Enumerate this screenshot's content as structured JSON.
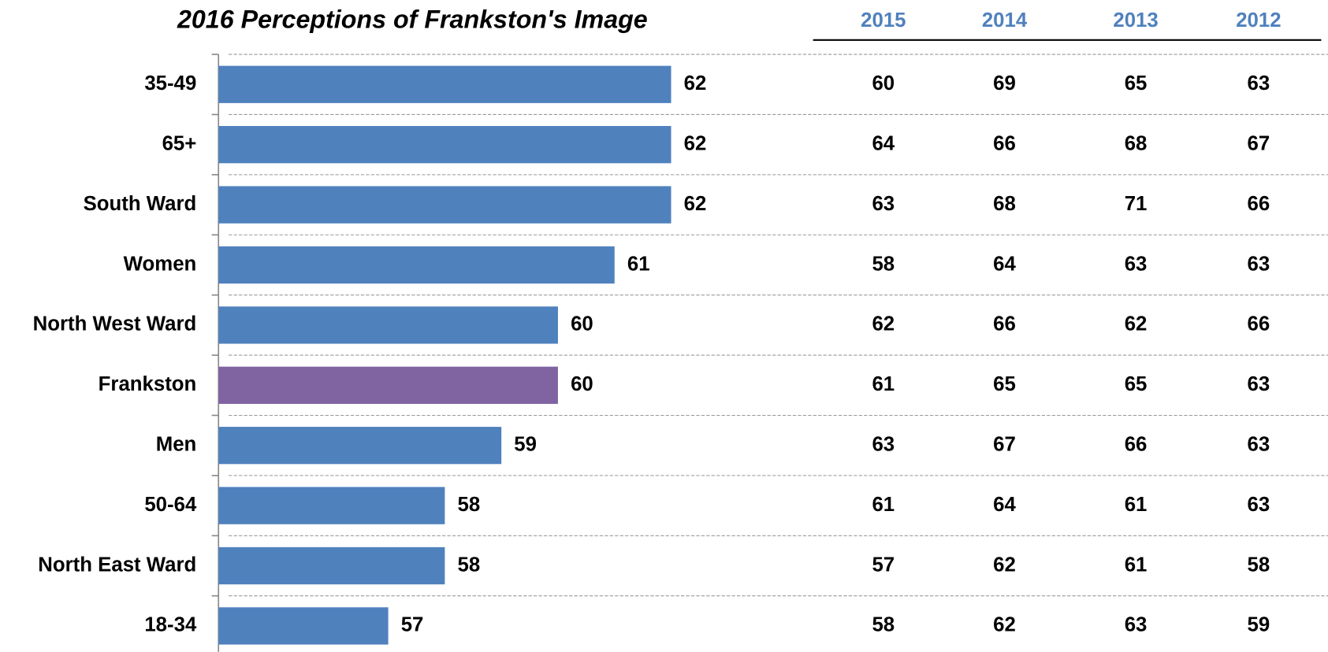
{
  "chart_data": {
    "type": "bar",
    "orientation": "horizontal",
    "title": "2016 Perceptions of Frankston's Image",
    "categories": [
      "35-49",
      "65+",
      "South Ward",
      "Women",
      "North West Ward",
      "Frankston",
      "Men",
      "50-64",
      "North East Ward",
      "18-34"
    ],
    "values": [
      62,
      62,
      62,
      61,
      60,
      60,
      59,
      58,
      58,
      57
    ],
    "colors": [
      "#4f81bd",
      "#4f81bd",
      "#4f81bd",
      "#4f81bd",
      "#4f81bd",
      "#8064a2",
      "#4f81bd",
      "#4f81bd",
      "#4f81bd",
      "#4f81bd"
    ],
    "xlim": [
      54,
      64
    ],
    "table": {
      "columns": [
        "2015",
        "2014",
        "2013",
        "2012"
      ],
      "rows": [
        [
          60,
          69,
          65,
          63
        ],
        [
          64,
          66,
          68,
          67
        ],
        [
          63,
          68,
          71,
          66
        ],
        [
          58,
          64,
          63,
          63
        ],
        [
          62,
          66,
          62,
          66
        ],
        [
          61,
          65,
          65,
          63
        ],
        [
          63,
          67,
          66,
          63
        ],
        [
          61,
          64,
          61,
          63
        ],
        [
          57,
          62,
          61,
          58
        ],
        [
          58,
          62,
          63,
          59
        ]
      ]
    }
  }
}
